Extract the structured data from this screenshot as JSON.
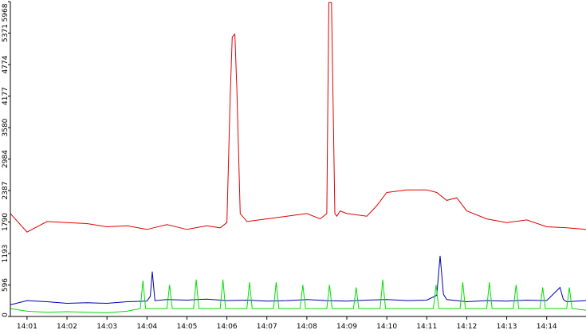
{
  "chart_data": {
    "type": "line",
    "title": "",
    "xlabel": "",
    "ylabel": "",
    "ylim": [
      0,
      5968
    ],
    "xlim": [
      "14:00:35",
      "14:14:59"
    ],
    "grid": false,
    "y_tick_labels": [
      "0",
      "596",
      "1193",
      "1790",
      "2387",
      "2984",
      "3580",
      "4177",
      "4774",
      "5371",
      "5968"
    ],
    "x_tick_labels": [
      "14:01",
      "14:02",
      "14:03",
      "14:04",
      "14:05",
      "14:06",
      "14:07",
      "14:08",
      "14:09",
      "14:10",
      "14:11",
      "14:12",
      "14:13",
      "14:14"
    ],
    "series": [
      {
        "color": "#e00000",
        "x": [
          "14:00:35",
          "14:01:00",
          "14:01:30",
          "14:02:00",
          "14:02:30",
          "14:03:00",
          "14:03:30",
          "14:04:00",
          "14:04:30",
          "14:05:00",
          "14:05:30",
          "14:05:50",
          "14:06:00",
          "14:06:05",
          "14:06:08",
          "14:06:12",
          "14:06:15",
          "14:06:20",
          "14:06:30",
          "14:07:00",
          "14:07:30",
          "14:08:00",
          "14:08:20",
          "14:08:30",
          "14:08:33",
          "14:08:37",
          "14:08:42",
          "14:08:45",
          "14:08:50",
          "14:09:00",
          "14:09:30",
          "14:09:45",
          "14:10:00",
          "14:10:30",
          "14:11:00",
          "14:11:15",
          "14:11:30",
          "14:11:45",
          "14:12:00",
          "14:12:30",
          "14:13:00",
          "14:13:30",
          "14:14:00",
          "14:14:30",
          "14:14:59"
        ],
        "y": [
          1950,
          1600,
          1800,
          1780,
          1760,
          1700,
          1720,
          1650,
          1740,
          1650,
          1720,
          1680,
          1780,
          4200,
          5300,
          5350,
          4300,
          1950,
          1800,
          1850,
          1900,
          1950,
          1850,
          1950,
          5950,
          5950,
          1950,
          1900,
          2000,
          1950,
          1900,
          2100,
          2350,
          2400,
          2400,
          2350,
          2200,
          2250,
          2000,
          1850,
          1780,
          1830,
          1700,
          1680,
          1650
        ]
      },
      {
        "color": "#0000b0",
        "x": [
          "14:00:35",
          "14:01:00",
          "14:01:30",
          "14:02:00",
          "14:02:30",
          "14:03:00",
          "14:03:30",
          "14:04:00",
          "14:04:05",
          "14:04:08",
          "14:04:12",
          "14:04:30",
          "14:05:00",
          "14:05:30",
          "14:06:00",
          "14:06:30",
          "14:07:00",
          "14:07:30",
          "14:08:00",
          "14:08:30",
          "14:09:00",
          "14:09:30",
          "14:10:00",
          "14:10:30",
          "14:11:00",
          "14:11:15",
          "14:11:20",
          "14:11:25",
          "14:11:30",
          "14:12:00",
          "14:12:30",
          "14:13:00",
          "14:13:30",
          "14:14:00",
          "14:14:20",
          "14:14:25",
          "14:14:30",
          "14:14:59"
        ],
        "y": [
          220,
          300,
          280,
          250,
          260,
          250,
          280,
          290,
          380,
          850,
          300,
          320,
          310,
          330,
          300,
          310,
          290,
          300,
          320,
          300,
          290,
          310,
          320,
          300,
          310,
          400,
          1150,
          420,
          320,
          280,
          300,
          290,
          310,
          300,
          550,
          320,
          280,
          300
        ]
      },
      {
        "color": "#00dd00",
        "x": [
          "14:00:35",
          "14:01:00",
          "14:01:30",
          "14:02:00",
          "14:02:30",
          "14:03:00",
          "14:03:30",
          "14:03:50",
          "14:03:54",
          "14:03:58",
          "14:04:30",
          "14:04:34",
          "14:04:38",
          "14:05:00",
          "14:05:10",
          "14:05:14",
          "14:05:18",
          "14:05:40",
          "14:05:50",
          "14:05:54",
          "14:05:58",
          "14:06:30",
          "14:06:34",
          "14:06:38",
          "14:07:10",
          "14:07:14",
          "14:07:18",
          "14:07:50",
          "14:07:54",
          "14:07:58",
          "14:08:30",
          "14:08:34",
          "14:08:38",
          "14:09:10",
          "14:09:14",
          "14:09:18",
          "14:09:50",
          "14:09:54",
          "14:09:58",
          "14:10:30",
          "14:11:00",
          "14:11:10",
          "14:11:14",
          "14:11:18",
          "14:11:50",
          "14:11:54",
          "14:11:58",
          "14:12:30",
          "14:12:34",
          "14:12:38",
          "14:13:10",
          "14:13:14",
          "14:13:18",
          "14:13:50",
          "14:13:54",
          "14:13:58",
          "14:14:30",
          "14:14:34",
          "14:14:38",
          "14:14:59"
        ],
        "y": [
          150,
          100,
          80,
          90,
          80,
          70,
          100,
          150,
          680,
          150,
          150,
          600,
          150,
          150,
          150,
          700,
          150,
          150,
          150,
          700,
          150,
          150,
          650,
          150,
          150,
          650,
          150,
          150,
          600,
          150,
          150,
          600,
          150,
          150,
          550,
          150,
          150,
          700,
          150,
          150,
          150,
          150,
          600,
          150,
          150,
          650,
          150,
          150,
          650,
          150,
          150,
          600,
          150,
          150,
          550,
          150,
          150,
          550,
          150,
          120
        ]
      }
    ]
  }
}
